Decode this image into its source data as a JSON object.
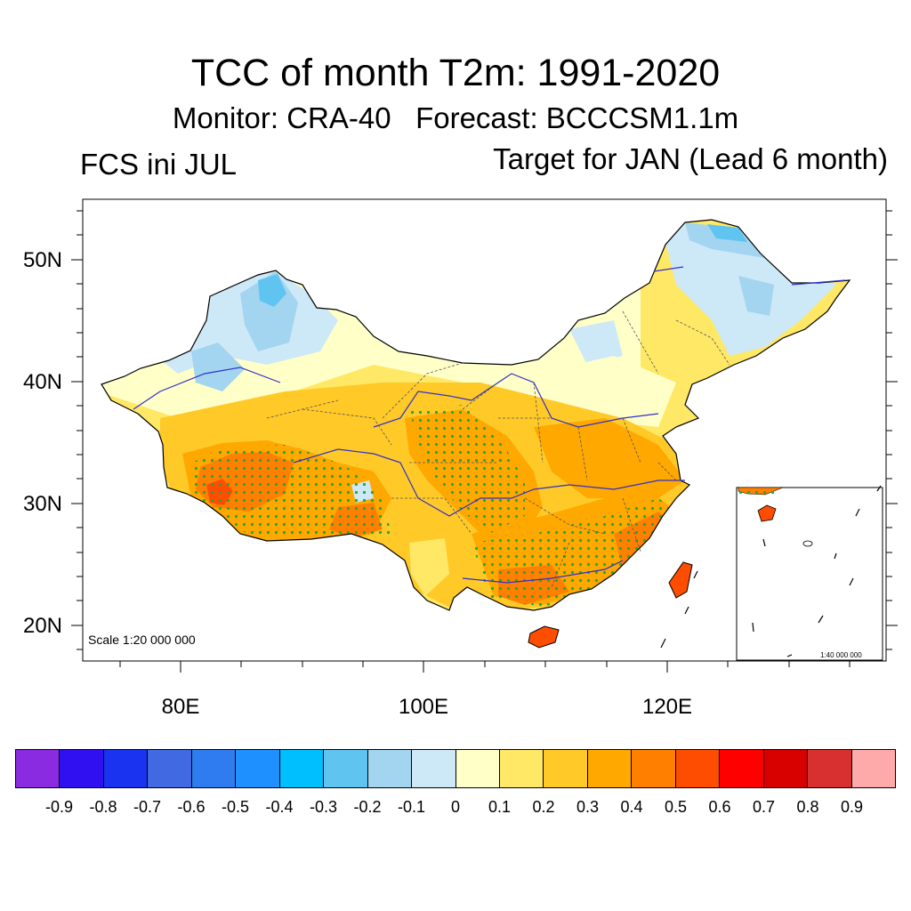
{
  "title": "TCC of month T2m: 1991-2020",
  "subtitle": "Monitor: CRA-40   Forecast: BCCCSM1.1m",
  "left_label": "FCS ini JUL",
  "right_label": "Target for JAN (Lead 6 month)",
  "latitude_labels": [
    "50N",
    "40N",
    "30N",
    "20N"
  ],
  "longitude_labels": [
    "80E",
    "100E",
    "120E"
  ],
  "scale_text": "Scale 1:20 000 000",
  "inset_scale_text": "1:40 000 000",
  "colorbar": {
    "colors": [
      "#8a2be2",
      "#3010f0",
      "#1a33f0",
      "#4169e1",
      "#2f7cf0",
      "#1e90ff",
      "#00bfff",
      "#5fc4f0",
      "#a3d4f0",
      "#cde8f7",
      "#ffffc8",
      "#ffe866",
      "#ffc928",
      "#ffa800",
      "#ff8000",
      "#ff4d00",
      "#ff0000",
      "#d90000",
      "#d83030",
      "#ffaaaa"
    ],
    "labels": [
      "-0.9",
      "-0.8",
      "-0.7",
      "-0.6",
      "-0.5",
      "-0.4",
      "-0.3",
      "-0.2",
      "-0.1",
      "0",
      "0.1",
      "0.2",
      "0.3",
      "0.4",
      "0.5",
      "0.6",
      "0.7",
      "0.8",
      "0.9"
    ]
  }
}
